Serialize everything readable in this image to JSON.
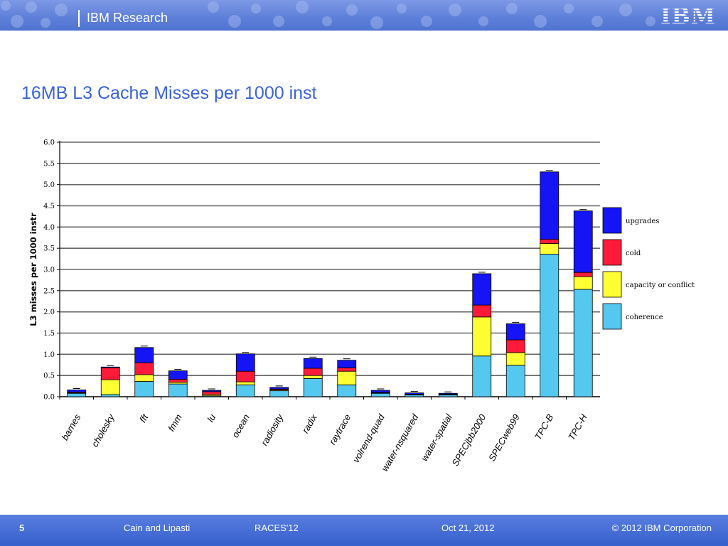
{
  "header": {
    "brand": "IBM Research",
    "logo_text": "IBM"
  },
  "slide": {
    "title": "16MB L3 Cache Misses per 1000 inst"
  },
  "footer": {
    "page": "5",
    "authors": "Cain and Lipasti",
    "conference": "RACES'12",
    "date": "Oct 21, 2012",
    "copyright": "© 2012 IBM Corporation"
  },
  "colors": {
    "accent": "#3b63d9",
    "coherence": "#55c8f0",
    "capacity": "#ffff33",
    "cold": "#ff1a3a",
    "upgrades": "#1414f5"
  },
  "chart_data": {
    "type": "bar",
    "stacked": true,
    "title": "",
    "xlabel": "",
    "ylabel": "L3 misses per 1000 instr",
    "ylim": [
      0,
      6.0
    ],
    "yticks": [
      "0.0",
      "0.5",
      "1.0",
      "1.5",
      "2.0",
      "2.5",
      "3.0",
      "3.5",
      "4.0",
      "4.5",
      "5.0",
      "5.5",
      "6.0"
    ],
    "grid": true,
    "legend_position": "right",
    "categories": [
      "barnes",
      "cholesky",
      "fft",
      "fmm",
      "lu",
      "ocean",
      "radiosity",
      "radix",
      "raytrace",
      "volrend-quad",
      "water-nsquared",
      "water-spatial",
      "SPECjbb2000",
      "SPECweb99",
      "TPC-B",
      "TPC-H"
    ],
    "series": [
      {
        "name": "coherence",
        "color": "#55c8f0",
        "values": [
          0.08,
          0.05,
          0.36,
          0.3,
          0.02,
          0.28,
          0.14,
          0.43,
          0.28,
          0.08,
          0.04,
          0.04,
          0.96,
          0.74,
          3.36,
          2.53
        ]
      },
      {
        "name": "capacity or conflict",
        "color": "#ffff33",
        "values": [
          0.01,
          0.35,
          0.16,
          0.04,
          0.03,
          0.07,
          0.02,
          0.07,
          0.32,
          0.01,
          0.01,
          0.01,
          0.92,
          0.3,
          0.25,
          0.3
        ]
      },
      {
        "name": "cold",
        "color": "#ff1a3a",
        "values": [
          0.02,
          0.28,
          0.28,
          0.07,
          0.07,
          0.25,
          0.02,
          0.17,
          0.08,
          0.01,
          0.01,
          0.01,
          0.28,
          0.3,
          0.1,
          0.1
        ]
      },
      {
        "name": "upgrades",
        "color": "#1414f5",
        "values": [
          0.05,
          0.02,
          0.36,
          0.2,
          0.03,
          0.41,
          0.04,
          0.23,
          0.18,
          0.05,
          0.03,
          0.02,
          0.74,
          0.38,
          1.59,
          1.45
        ]
      }
    ]
  }
}
